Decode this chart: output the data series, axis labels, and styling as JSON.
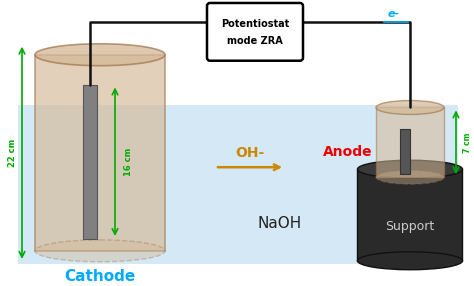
{
  "bg_color": "#ffffff",
  "solution_color": "#d4e8f5",
  "cathode_cyl_color": "#d4b896",
  "cathode_cyl_edge": "#a07850",
  "electrode_color": "#808080",
  "electrode_edge": "#555555",
  "anode_cyl_color": "#d4b896",
  "anode_cyl_edge": "#a07850",
  "support_color": "#2a2a2a",
  "support_edge": "#111111",
  "support_top_color": "#3a3a3a",
  "wire_color": "#111111",
  "arrow_oh_color": "#cc8800",
  "electron_color": "#00aaff",
  "cathode_label_color": "#00aaff",
  "anode_label_color": "#ee0000",
  "dim_color": "#00aa00",
  "naoh_color": "#222222",
  "support_text_color": "#cccccc",
  "potentiostat_line1": "Potentiostat",
  "potentiostat_line2": "mode ZRA",
  "cathode_label": "Cathode",
  "anode_label": "Anode",
  "support_label": "Support",
  "naoh_label": "NaOH",
  "oh_label": "OH-",
  "electron_label": "e-",
  "dim_22": "22 cm",
  "dim_16": "16 cm",
  "dim_7": "7 cm"
}
